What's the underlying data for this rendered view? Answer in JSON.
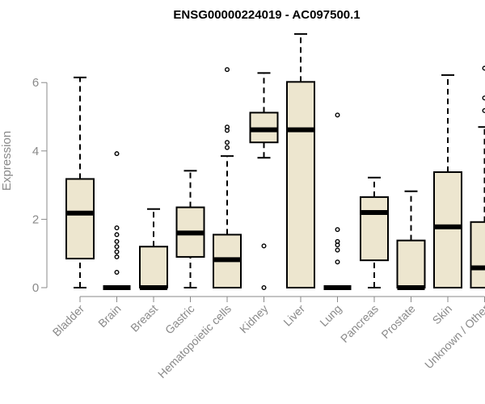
{
  "chart_data": {
    "type": "boxplot",
    "title": "ENSG00000224019 - AC097500.1",
    "ylabel": "Expression",
    "xlabel": "",
    "ylim": [
      0,
      7.4
    ],
    "yticks": [
      0,
      2,
      4,
      6
    ],
    "box_fill": "#ede6cf",
    "box_stroke": "#000000",
    "categories": [
      "Bladder",
      "Brain",
      "Breast",
      "Gastric",
      "Hematopoietic cells",
      "Kidney",
      "Liver",
      "Lung",
      "Pancreas",
      "Prostate",
      "Skin",
      "Unknown / Other"
    ],
    "boxes": [
      {
        "min": 0,
        "q1": 0.85,
        "median": 2.18,
        "q3": 3.18,
        "max": 6.15,
        "outliers": []
      },
      {
        "min": 0,
        "q1": 0,
        "median": 0,
        "q3": 0,
        "max": 0,
        "outliers": [
          0.45,
          0.9,
          1.05,
          1.2,
          1.35,
          1.55,
          1.75,
          3.92
        ]
      },
      {
        "min": 0,
        "q1": 0,
        "median": 0,
        "q3": 1.2,
        "max": 2.3,
        "outliers": []
      },
      {
        "min": 0,
        "q1": 0.9,
        "median": 1.6,
        "q3": 2.35,
        "max": 3.42,
        "outliers": []
      },
      {
        "min": 0,
        "q1": 0,
        "median": 0.82,
        "q3": 1.55,
        "max": 3.85,
        "outliers": [
          4.1,
          4.25,
          4.6,
          4.7,
          6.38
        ]
      },
      {
        "min": 3.8,
        "q1": 4.25,
        "median": 4.62,
        "q3": 5.12,
        "max": 6.28,
        "outliers": [
          0,
          1.22
        ]
      },
      {
        "min": 0,
        "q1": 0,
        "median": 4.62,
        "q3": 6.02,
        "max": 7.42,
        "outliers": []
      },
      {
        "min": 0,
        "q1": 0,
        "median": 0,
        "q3": 0,
        "max": 0,
        "outliers": [
          0.75,
          1.1,
          1.25,
          1.35,
          1.7,
          5.05
        ]
      },
      {
        "min": 0,
        "q1": 0.8,
        "median": 2.2,
        "q3": 2.65,
        "max": 3.22,
        "outliers": []
      },
      {
        "min": 0,
        "q1": 0,
        "median": 0,
        "q3": 1.38,
        "max": 2.82,
        "outliers": []
      },
      {
        "min": 0,
        "q1": 0,
        "median": 1.78,
        "q3": 3.38,
        "max": 6.22,
        "outliers": []
      },
      {
        "min": 0,
        "q1": 0,
        "median": 0.58,
        "q3": 1.92,
        "max": 4.7,
        "outliers": [
          5.18,
          5.55,
          6.42
        ]
      }
    ]
  }
}
